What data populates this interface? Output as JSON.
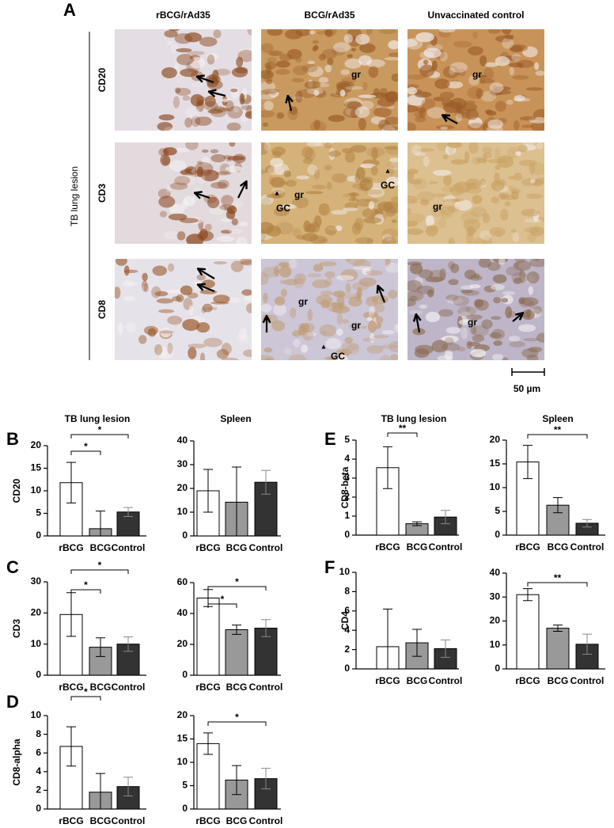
{
  "panel_a": {
    "label": "A",
    "columns": [
      "rBCG/rAd35",
      "BCG/rAd35",
      "Unvaccinated control"
    ],
    "rows": [
      "CD20",
      "CD3",
      "CD8"
    ],
    "side_label": "TB lung lesion",
    "cell_labels": [
      "gr",
      "gr",
      "GC",
      "gr",
      "GC",
      "gr",
      "gr",
      "gr",
      "GC",
      "gr"
    ],
    "scale_bar": "50 µm"
  },
  "chart_data": [
    {
      "type": "bar",
      "panel": "B",
      "title": "TB lung lesion",
      "ylabel": "CD20",
      "categories": [
        "rBCG",
        "BCG",
        "Control"
      ],
      "values": [
        11.8,
        1.6,
        5.3
      ],
      "errors": [
        4.5,
        3.9,
        1
      ],
      "colors": [
        "#ffffff",
        "#999999",
        "#333333"
      ],
      "significance": [
        null,
        "*",
        "*"
      ],
      "ylim": [
        0,
        20
      ],
      "yticks": [
        0,
        5,
        10,
        15,
        20
      ]
    },
    {
      "type": "bar",
      "title": "Spleen",
      "categories": [
        "rBCG",
        "BCG",
        "Control"
      ],
      "values": [
        19,
        14.2,
        22.6
      ],
      "errors": [
        9,
        14.8,
        5
      ],
      "colors": [
        "#ffffff",
        "#999999",
        "#333333"
      ],
      "ylim": [
        0,
        40
      ],
      "yticks": [
        0,
        10,
        20,
        30,
        40
      ]
    },
    {
      "type": "bar",
      "panel": "C",
      "ylabel": "CD3",
      "categories": [
        "rBCG",
        "BCG",
        "Control"
      ],
      "values": [
        19.5,
        9,
        10
      ],
      "errors": [
        7,
        3,
        2.3
      ],
      "colors": [
        "#ffffff",
        "#999999",
        "#333333"
      ],
      "significance": [
        null,
        "*",
        "*"
      ],
      "ylim": [
        0,
        30
      ],
      "yticks": [
        0,
        10,
        20,
        30
      ]
    },
    {
      "type": "bar",
      "categories": [
        "rBCG",
        "BCG",
        "Control"
      ],
      "values": [
        50,
        29.5,
        30.5
      ],
      "errors": [
        5.5,
        3,
        5.5
      ],
      "colors": [
        "#ffffff",
        "#999999",
        "#333333"
      ],
      "significance": [
        null,
        "*",
        "*"
      ],
      "ylim": [
        0,
        60
      ],
      "yticks": [
        0,
        20,
        40,
        60
      ]
    },
    {
      "type": "bar",
      "panel": "D",
      "ylabel": "CD8-alpha",
      "categories": [
        "rBCG",
        "BCG",
        "Control"
      ],
      "values": [
        6.7,
        1.8,
        2.4
      ],
      "errors": [
        2.1,
        2,
        1
      ],
      "colors": [
        "#ffffff",
        "#999999",
        "#333333"
      ],
      "significance": [
        null,
        "*",
        null
      ],
      "ylim": [
        0,
        10
      ],
      "yticks": [
        0,
        2,
        4,
        6,
        8,
        10
      ]
    },
    {
      "type": "bar",
      "categories": [
        "rBCG",
        "BCG",
        "Control"
      ],
      "values": [
        14,
        6.2,
        6.5
      ],
      "errors": [
        2.3,
        3.1,
        2.2
      ],
      "colors": [
        "#ffffff",
        "#999999",
        "#333333"
      ],
      "significance": [
        null,
        null,
        "*"
      ],
      "ylim": [
        0,
        20
      ],
      "yticks": [
        0,
        5,
        10,
        15,
        20
      ]
    },
    {
      "type": "bar",
      "panel": "E",
      "title": "TB lung lesion",
      "ylabel": "CD8-beta",
      "categories": [
        "rBCG",
        "BCG",
        "Control"
      ],
      "values": [
        3.55,
        0.6,
        0.95
      ],
      "errors": [
        1.1,
        0.1,
        0.35
      ],
      "colors": [
        "#ffffff",
        "#999999",
        "#333333"
      ],
      "significance": [
        null,
        "**",
        null
      ],
      "ylim": [
        0,
        5
      ],
      "yticks": [
        0,
        1,
        2,
        3,
        4,
        5
      ]
    },
    {
      "type": "bar",
      "title": "Spleen",
      "categories": [
        "rBCG",
        "BCG",
        "Control"
      ],
      "values": [
        15.4,
        6.3,
        2.5
      ],
      "errors": [
        3.5,
        1.6,
        0.8
      ],
      "colors": [
        "#ffffff",
        "#999999",
        "#333333"
      ],
      "significance": [
        null,
        null,
        "**"
      ],
      "ylim": [
        0,
        20
      ],
      "yticks": [
        0,
        5,
        10,
        15,
        20
      ]
    },
    {
      "type": "bar",
      "panel": "F",
      "ylabel": "CD4",
      "categories": [
        "rBCG",
        "BCG",
        "Control"
      ],
      "values": [
        2.3,
        2.7,
        2.1
      ],
      "errors": [
        3.9,
        1.4,
        0.9
      ],
      "colors": [
        "#ffffff",
        "#999999",
        "#333333"
      ],
      "ylim": [
        0,
        10
      ],
      "yticks": [
        0,
        2,
        4,
        6,
        8,
        10
      ]
    },
    {
      "type": "bar",
      "categories": [
        "rBCG",
        "BCG",
        "Control"
      ],
      "values": [
        31,
        17,
        10.3
      ],
      "errors": [
        2.5,
        1.3,
        4.2
      ],
      "colors": [
        "#ffffff",
        "#999999",
        "#333333"
      ],
      "significance": [
        null,
        null,
        "**"
      ],
      "ylim": [
        0,
        40
      ],
      "yticks": [
        0,
        10,
        20,
        30,
        40
      ]
    }
  ]
}
